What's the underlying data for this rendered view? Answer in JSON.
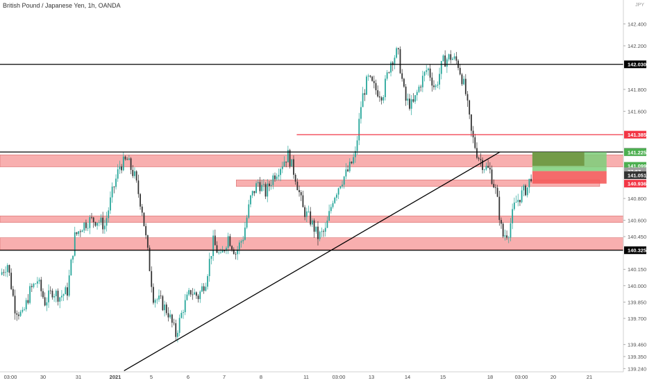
{
  "header": {
    "symbol_title": "British Pound / Japanese Yen, 1h, OANDA"
  },
  "currency": "JPY",
  "colors": {
    "up": "#26a69a",
    "down": "#333333",
    "zone_fill": "#f7a1a1",
    "zone_stroke": "#d86a6a",
    "red_line": "#f23645",
    "black": "#000000",
    "target": "#7ccf7a",
    "target_dark": "#6b8e3a",
    "stop": "#f45b5b"
  },
  "chart_data": {
    "type": "candlestick",
    "title": "British Pound / Japanese Yen, 1h, OANDA",
    "ylim": [
      139.21,
      142.62
    ],
    "y_ticks": [
      142.4,
      142.2,
      141.8,
      141.6,
      140.8,
      140.6,
      140.45,
      140.15,
      140.0,
      139.85,
      139.7,
      139.46,
      139.35,
      139.24
    ],
    "y_tick_labels": [
      "142.400",
      "142.200",
      "141.800",
      "141.600",
      "140.800",
      "140.600",
      "140.450",
      "140.150",
      "140.000",
      "139.850",
      "139.700",
      "139.460",
      "139.350",
      "139.240"
    ],
    "x_ticks": [
      "03:00",
      "30",
      "31",
      "2021",
      "5",
      "6",
      "7",
      "8",
      "11",
      "03:00",
      "13",
      "14",
      "15",
      "18",
      "03:00",
      "20",
      "21"
    ],
    "x_tick_bold": [
      false,
      false,
      false,
      true,
      false,
      false,
      false,
      false,
      false,
      false,
      false,
      false,
      false,
      false,
      false,
      false,
      false
    ],
    "zones": [
      {
        "from": 141.09,
        "to": 141.2,
        "x_from_pct": 0,
        "x_to_pct": 100
      },
      {
        "from": 140.91,
        "to": 140.97,
        "x_from_pct": 37.9,
        "x_to_pct": 96.2
      },
      {
        "from": 140.58,
        "to": 140.64,
        "x_from_pct": 0,
        "x_to_pct": 100
      },
      {
        "from": 140.33,
        "to": 140.44,
        "x_from_pct": 0,
        "x_to_pct": 100
      }
    ],
    "horizontal_lines": [
      {
        "price": 142.03,
        "color": "black",
        "x_from_pct": 0,
        "label": "142.030",
        "label_bg": "#000000"
      },
      {
        "price": 141.385,
        "color": "red",
        "x_from_pct": 47.6,
        "label": "141.385",
        "label_bg": "#f23645"
      },
      {
        "price": 141.226,
        "color": "black",
        "x_from_pct": 0,
        "label": "141.226",
        "label_bg": "#000000"
      },
      {
        "price": 140.325,
        "color": "black",
        "x_from_pct": 0,
        "label": "140.325",
        "label_bg": "#000000"
      }
    ],
    "trendline": {
      "from": {
        "x_pct": 19.9,
        "price": 139.22
      },
      "to": {
        "x_pct": 80.2,
        "price": 141.226
      }
    },
    "position": {
      "entry": 141.051,
      "target": 141.225,
      "target2": 141.099,
      "stop": 140.936,
      "x_from_pct": 85.4,
      "x_to_pct": 97.3
    },
    "price_labels": [
      {
        "price": 141.225,
        "text": "141.225",
        "bg": "#4caf50"
      },
      {
        "price": 141.099,
        "text": "141.099",
        "bg": "#4caf50"
      },
      {
        "price": 141.06,
        "text": "37:57",
        "bg": "#9e9e9e"
      },
      {
        "price": 141.051,
        "text": "141.051",
        "bg": "#333333"
      },
      {
        "price": 140.936,
        "text": "140.936",
        "bg": "#f23645"
      }
    ],
    "anchors": [
      [
        0,
        140.1
      ],
      [
        1.2,
        140.2
      ],
      [
        2.4,
        139.8
      ],
      [
        3.6,
        139.72
      ],
      [
        4.8,
        139.95
      ],
      [
        6.0,
        140.05
      ],
      [
        7.2,
        139.85
      ],
      [
        8.4,
        139.95
      ],
      [
        9.6,
        139.9
      ],
      [
        10.8,
        139.95
      ],
      [
        12.0,
        140.45
      ],
      [
        13.2,
        140.55
      ],
      [
        14.4,
        140.6
      ],
      [
        15.6,
        140.6
      ],
      [
        16.8,
        140.55
      ],
      [
        18.0,
        140.85
      ],
      [
        19.2,
        141.1
      ],
      [
        20.4,
        141.15
      ],
      [
        21.6,
        141.0
      ],
      [
        22.8,
        140.7
      ],
      [
        23.7,
        140.3
      ],
      [
        24.6,
        139.9
      ],
      [
        25.8,
        139.85
      ],
      [
        27.0,
        139.75
      ],
      [
        28.2,
        139.55
      ],
      [
        29.4,
        139.8
      ],
      [
        30.6,
        139.95
      ],
      [
        31.8,
        139.9
      ],
      [
        33.0,
        140.05
      ],
      [
        34.2,
        140.4
      ],
      [
        35.4,
        140.25
      ],
      [
        36.6,
        140.45
      ],
      [
        37.8,
        140.3
      ],
      [
        39.0,
        140.45
      ],
      [
        40.2,
        140.8
      ],
      [
        41.4,
        140.95
      ],
      [
        42.6,
        140.85
      ],
      [
        43.8,
        141.0
      ],
      [
        45.0,
        141.1
      ],
      [
        46.2,
        141.2
      ],
      [
        47.4,
        141.0
      ],
      [
        48.6,
        140.7
      ],
      [
        49.8,
        140.6
      ],
      [
        51.0,
        140.45
      ],
      [
        52.2,
        140.5
      ],
      [
        53.4,
        140.8
      ],
      [
        54.6,
        140.95
      ],
      [
        55.8,
        141.05
      ],
      [
        57.0,
        141.2
      ],
      [
        58.0,
        141.7
      ],
      [
        59.0,
        141.9
      ],
      [
        60.2,
        141.8
      ],
      [
        61.4,
        141.75
      ],
      [
        62.6,
        142.05
      ],
      [
        63.8,
        142.15
      ],
      [
        65.0,
        141.7
      ],
      [
        66.2,
        141.65
      ],
      [
        67.4,
        141.85
      ],
      [
        68.6,
        142.0
      ],
      [
        69.8,
        141.8
      ],
      [
        71.0,
        142.05
      ],
      [
        72.2,
        142.1
      ],
      [
        73.4,
        142.05
      ],
      [
        74.6,
        141.8
      ],
      [
        75.6,
        141.4
      ],
      [
        76.6,
        141.2
      ],
      [
        77.6,
        141.1
      ],
      [
        78.6,
        141.05
      ],
      [
        79.6,
        140.85
      ],
      [
        80.6,
        140.45
      ],
      [
        81.6,
        140.5
      ],
      [
        82.6,
        140.75
      ],
      [
        83.8,
        140.85
      ],
      [
        84.6,
        140.9
      ],
      [
        85.4,
        141.05
      ]
    ]
  }
}
